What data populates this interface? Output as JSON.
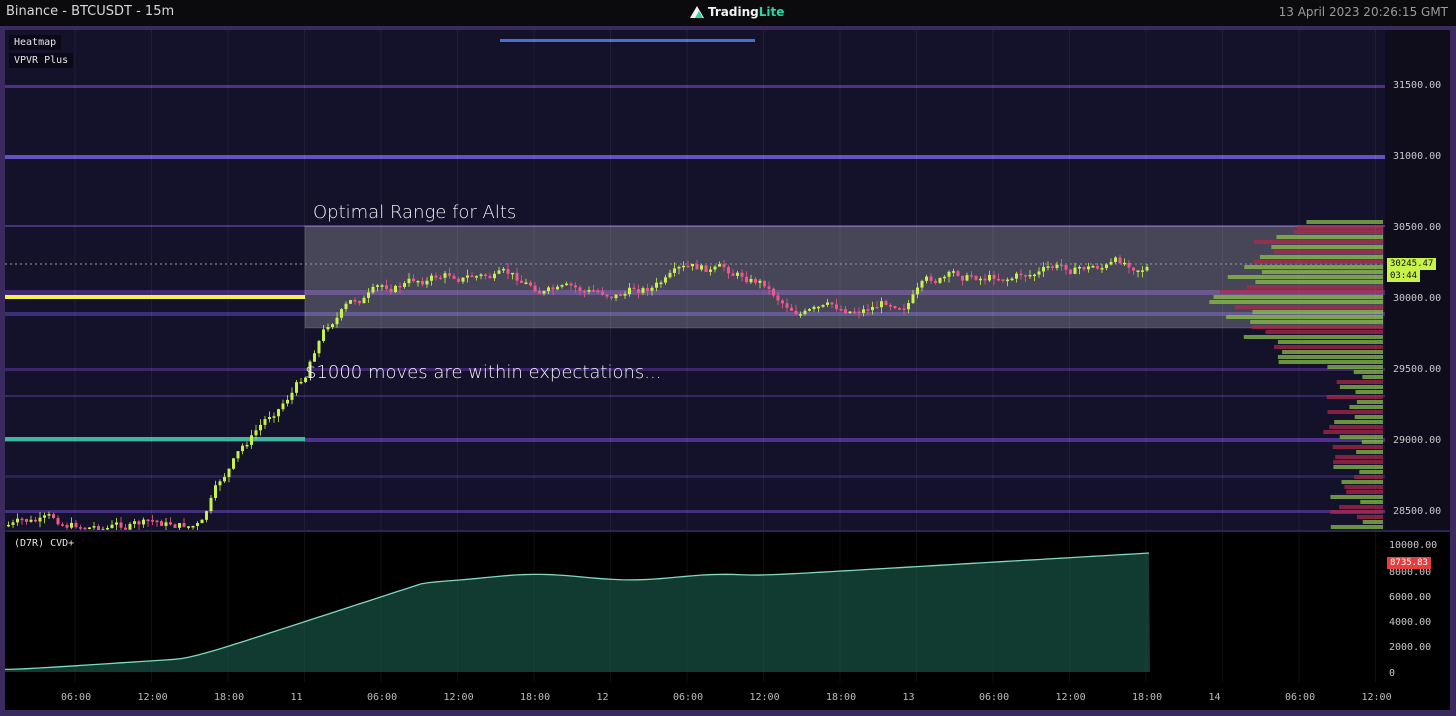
{
  "window": {
    "title": "Binance - BTCUSDT - 15m",
    "brand_main": "Trading",
    "brand_accent": "Lite",
    "timestamp": "13 April 2023 20:26:15 GMT"
  },
  "indicators": {
    "heatmap": "Heatmap",
    "vpvr": "VPVR Plus",
    "cvd": "(D7R) CVD+"
  },
  "annotations": {
    "range": "Optimal Range for Alts",
    "moves": "$1000 moves are within expectations..."
  },
  "price_axis": {
    "ticks": [
      "31500.00",
      "31000.00",
      "30500.00",
      "30000.00",
      "29500.00",
      "29000.00",
      "28500.00"
    ],
    "current_price": "30245.47",
    "countdown": "03:44"
  },
  "cvd_axis": {
    "ticks": [
      "10000.00",
      "8000.00",
      "6000.00",
      "4000.00",
      "2000.00",
      "0"
    ],
    "current_value": "8735.83"
  },
  "time_axis": {
    "ticks": [
      "06:00",
      "12:00",
      "18:00",
      "11",
      "06:00",
      "12:00",
      "18:00",
      "12",
      "06:00",
      "12:00",
      "18:00",
      "13",
      "06:00",
      "12:00",
      "18:00",
      "14",
      "06:00",
      "12:00"
    ]
  },
  "colors": {
    "frame": "#3a2a5e",
    "background": "#14112a",
    "bull": "#c6f24a",
    "bear": "#f0588c",
    "cvd_line": "#7fd9bf",
    "cvd_down": "#e63e3e",
    "range_box": "#ffffff"
  }
}
